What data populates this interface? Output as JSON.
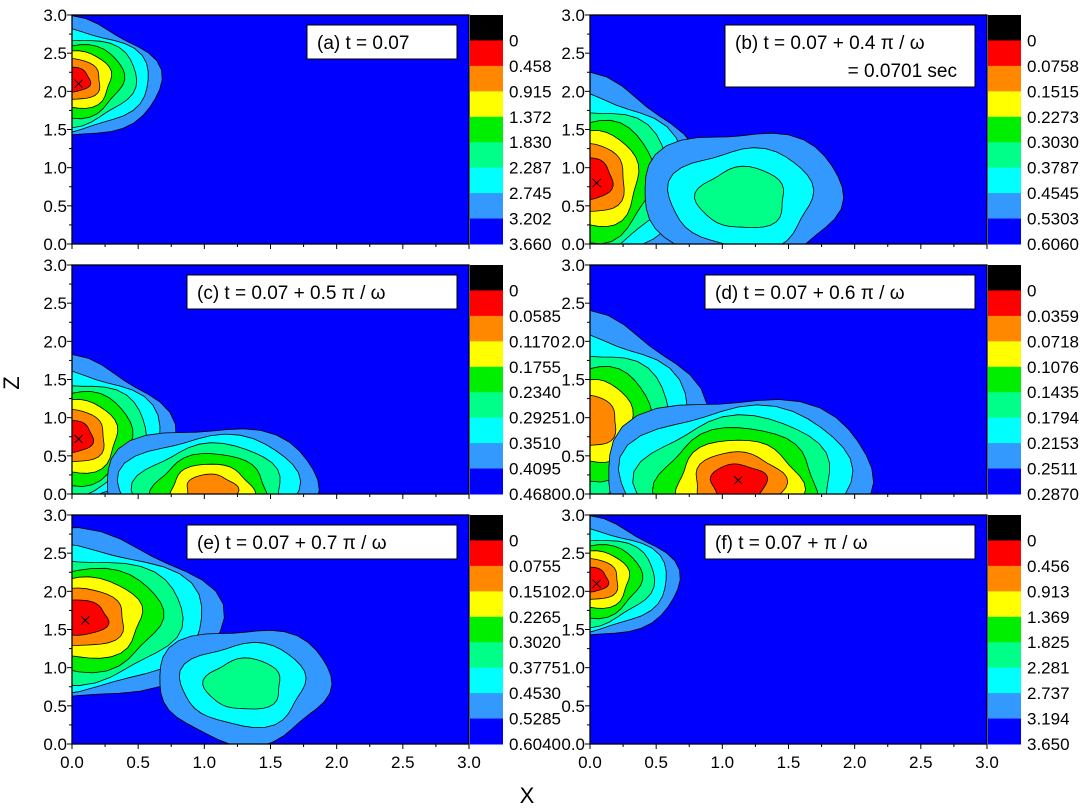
{
  "chart_data": {
    "type": "heatmap",
    "subtype": "filled-contour",
    "layout": "3 rows x 2 columns",
    "shared_xlabel": "X",
    "shared_ylabel": "Z",
    "xlim": [
      0.0,
      3.0
    ],
    "ylim": [
      0.0,
      3.0
    ],
    "xticks": [
      "0.0",
      "0.5",
      "1.0",
      "1.5",
      "2.0",
      "2.5",
      "3.0"
    ],
    "yticks": [
      "0.0",
      "0.5",
      "1.0",
      "1.5",
      "2.0",
      "2.5",
      "3.0"
    ],
    "colors": [
      "#0000ff",
      "#3399ff",
      "#00ffff",
      "#00ff88",
      "#00ee00",
      "#ffff00",
      "#ff8800",
      "#ff0000",
      "#000000"
    ],
    "panels": [
      {
        "id": "a",
        "label_lines": [
          "(a) t = 0.07"
        ],
        "levels": [
          "0",
          "0.458",
          "0.915",
          "1.372",
          "1.830",
          "2.287",
          "2.745",
          "3.202",
          "3.660"
        ],
        "max_marker": {
          "x": 0.05,
          "z": 2.1
        },
        "peaks": [
          {
            "x": 0.0,
            "z": 2.15,
            "rx": 0.65,
            "rz": 0.78,
            "max_level": 7
          }
        ]
      },
      {
        "id": "b",
        "label_lines": [
          "(b) t = 0.07 + 0.4 π / ω",
          "= 0.0701 sec"
        ],
        "levels": [
          "0",
          "0.0758",
          "0.1515",
          "0.2273",
          "0.3030",
          "0.3787",
          "0.4545",
          "0.5303",
          "0.6060"
        ],
        "max_marker": {
          "x": 0.05,
          "z": 0.8
        },
        "peaks": [
          {
            "x": 0.0,
            "z": 0.85,
            "rx": 0.8,
            "rz": 1.3,
            "max_level": 7
          },
          {
            "x": 1.15,
            "z": 0.6,
            "rx": 0.75,
            "rz": 0.9,
            "max_level": 3
          }
        ]
      },
      {
        "id": "c",
        "label_lines": [
          "(c) t = 0.07 + 0.5 π / ω"
        ],
        "levels": [
          "0",
          "0.0585",
          "0.1170",
          "0.1755",
          "0.2340",
          "0.2925",
          "0.3510",
          "0.4095",
          "0.4680"
        ],
        "max_marker": {
          "x": 0.05,
          "z": 0.72
        },
        "peaks": [
          {
            "x": 0.0,
            "z": 0.75,
            "rx": 0.75,
            "rz": 1.0,
            "max_level": 7
          },
          {
            "x": 1.05,
            "z": 0.05,
            "rx": 0.8,
            "rz": 0.85,
            "max_level": 6
          }
        ]
      },
      {
        "id": "d",
        "label_lines": [
          "(d) t = 0.07 + 0.6 π / ω"
        ],
        "levels": [
          "0",
          "0.0359",
          "0.0718",
          "0.1076",
          "0.1435",
          "0.1794",
          "0.2153",
          "0.2511",
          "0.2870"
        ],
        "max_marker": {
          "x": 1.12,
          "z": 0.18
        },
        "peaks": [
          {
            "x": 0.0,
            "z": 0.95,
            "rx": 0.85,
            "rz": 1.35,
            "max_level": 6
          },
          {
            "x": 1.12,
            "z": 0.15,
            "rx": 1.0,
            "rz": 1.15,
            "max_level": 7
          }
        ]
      },
      {
        "id": "e",
        "label_lines": [
          "(e) t = 0.07 + 0.7 π / ω"
        ],
        "levels": [
          "0",
          "0.0755",
          "0.1510",
          "0.2265",
          "0.3020",
          "0.3775",
          "0.4530",
          "0.5285",
          "0.6040"
        ],
        "max_marker": {
          "x": 0.1,
          "z": 1.62
        },
        "peaks": [
          {
            "x": 0.05,
            "z": 1.65,
            "rx": 1.05,
            "rz": 1.1,
            "max_level": 7
          },
          {
            "x": 1.3,
            "z": 0.78,
            "rx": 0.65,
            "rz": 0.75,
            "max_level": 3
          }
        ]
      },
      {
        "id": "f",
        "label_lines": [
          "(f) t = 0.07 + π / ω"
        ],
        "levels": [
          "0",
          "0.456",
          "0.913",
          "1.369",
          "1.825",
          "2.281",
          "2.737",
          "3.194",
          "3.650"
        ],
        "max_marker": {
          "x": 0.05,
          "z": 2.1
        },
        "peaks": [
          {
            "x": 0.0,
            "z": 2.15,
            "rx": 0.65,
            "rz": 0.78,
            "max_level": 7
          }
        ]
      }
    ]
  }
}
